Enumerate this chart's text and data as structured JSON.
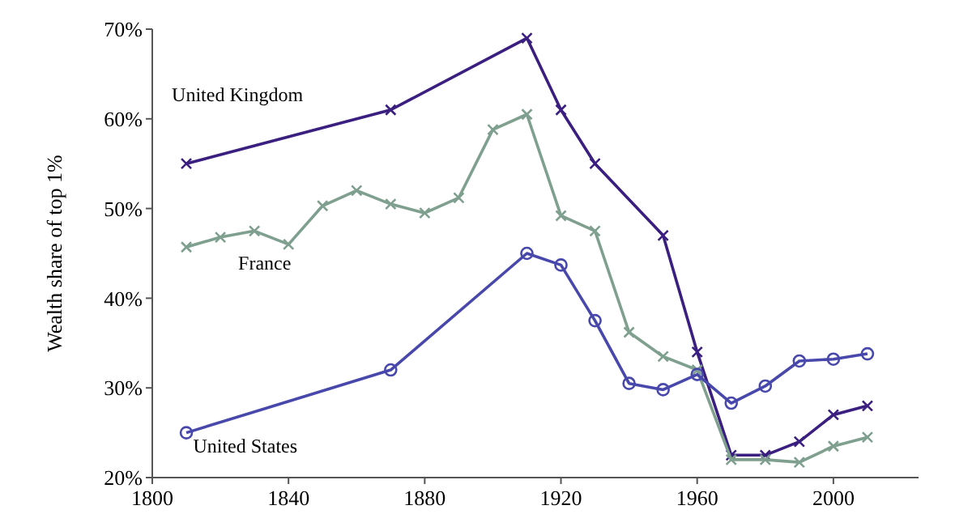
{
  "chart_data": {
    "type": "line",
    "ylabel": "Wealth share of top 1%",
    "xlim": [
      1800,
      2025
    ],
    "xticks": [
      1800,
      1840,
      1880,
      1920,
      1960,
      2000
    ],
    "ylim": [
      20,
      70
    ],
    "yticks": [
      {
        "value": 20,
        "label": "20%"
      },
      {
        "value": 30,
        "label": "30%"
      },
      {
        "value": 40,
        "label": "40%"
      },
      {
        "value": 50,
        "label": "50%"
      },
      {
        "value": 60,
        "label": "60%"
      },
      {
        "value": 70,
        "label": "70%"
      }
    ],
    "grid": false,
    "series": [
      {
        "name": "United Kingdom",
        "color": "#3a1f80",
        "marker": "cross",
        "x": [
          1810,
          1870,
          1910,
          1920,
          1930,
          1950,
          1960,
          1970,
          1980,
          1990,
          2000,
          2010
        ],
        "values": [
          55,
          61,
          69,
          61,
          55,
          47,
          34,
          22.5,
          22.5,
          24,
          27,
          28
        ]
      },
      {
        "name": "France",
        "color": "#7f9f8f",
        "marker": "cross",
        "x": [
          1810,
          1820,
          1830,
          1840,
          1850,
          1860,
          1870,
          1880,
          1890,
          1900,
          1910,
          1920,
          1930,
          1940,
          1950,
          1960,
          1970,
          1980,
          1990,
          2000,
          2010
        ],
        "values": [
          45.7,
          46.8,
          47.5,
          46,
          50.3,
          52,
          50.5,
          49.5,
          51.2,
          58.8,
          60.5,
          49.2,
          47.5,
          36.2,
          33.5,
          32,
          22,
          22,
          21.7,
          23.5,
          24.5
        ]
      },
      {
        "name": "United States",
        "color": "#4848ac",
        "marker": "circle",
        "x": [
          1810,
          1870,
          1910,
          1920,
          1930,
          1940,
          1950,
          1960,
          1970,
          1980,
          1990,
          2000,
          2010
        ],
        "values": [
          25,
          32,
          45,
          43.7,
          37.5,
          30.5,
          29.8,
          31.5,
          28.3,
          30.2,
          33,
          33.2,
          33.8
        ]
      }
    ]
  }
}
